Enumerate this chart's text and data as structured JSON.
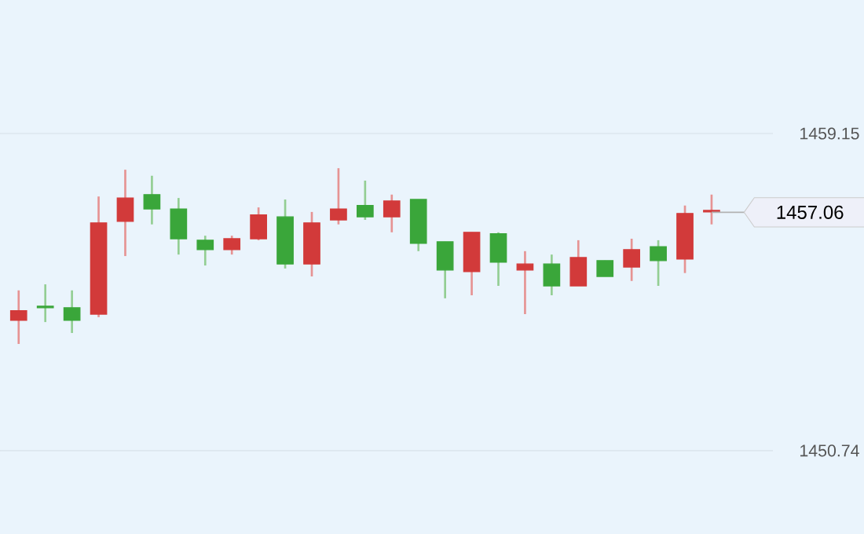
{
  "chart_data": {
    "type": "candlestick",
    "categories": [
      null,
      null,
      null,
      null,
      null,
      null,
      null,
      null,
      null,
      null,
      null,
      null,
      null,
      null,
      null,
      null,
      null,
      null,
      null,
      null,
      null,
      null,
      null,
      null,
      null,
      null,
      null
    ],
    "ohlc": [
      [
        1454.2,
        1454.99,
        1453.57,
        1454.45
      ],
      [
        1454.57,
        1455.15,
        1454.15,
        1454.53
      ],
      [
        1454.53,
        1454.99,
        1453.86,
        1454.2
      ],
      [
        1454.36,
        1457.48,
        1454.28,
        1456.78
      ],
      [
        1456.82,
        1458.19,
        1455.9,
        1457.44
      ],
      [
        1457.53,
        1458.03,
        1456.74,
        1457.15
      ],
      [
        1457.15,
        1457.44,
        1455.94,
        1456.36
      ],
      [
        1456.32,
        1456.44,
        1455.65,
        1456.07
      ],
      [
        1456.07,
        1456.44,
        1455.94,
        1456.36
      ],
      [
        1456.36,
        1457.19,
        1456.32,
        1456.99
      ],
      [
        1456.94,
        1457.4,
        1455.57,
        1455.69
      ],
      [
        1455.69,
        1457.07,
        1455.36,
        1456.78
      ],
      [
        1456.86,
        1458.23,
        1456.74,
        1457.15
      ],
      [
        1457.24,
        1457.9,
        1456.86,
        1456.94
      ],
      [
        1456.94,
        1457.53,
        1456.53,
        1457.36
      ],
      [
        1457.4,
        1457.4,
        1456.03,
        1456.24
      ],
      [
        1456.28,
        1456.28,
        1454.78,
        1455.53
      ],
      [
        1455.49,
        1456.53,
        1454.86,
        1456.53
      ],
      [
        1456.49,
        1456.53,
        1455.11,
        1455.74
      ],
      [
        1455.53,
        1456.03,
        1454.36,
        1455.69
      ],
      [
        1455.69,
        1455.94,
        1454.86,
        1455.11
      ],
      [
        1455.11,
        1456.32,
        1455.11,
        1455.86
      ],
      [
        1455.78,
        1455.78,
        1455.36,
        1455.36
      ],
      [
        1455.61,
        1456.36,
        1455.24,
        1456.07
      ],
      [
        1456.15,
        1456.32,
        1455.11,
        1455.78
      ],
      [
        1455.82,
        1457.24,
        1455.45,
        1457.03
      ],
      [
        1457.07,
        1457.53,
        1456.74,
        1457.11
      ]
    ],
    "ylim": [
      1448.53,
      1462.69
    ],
    "yticks": [
      1459.15,
      1450.74
    ],
    "grid": "y",
    "ref_lines": [
      {
        "axis": "y",
        "value": 1457.06,
        "label": "1457.06"
      }
    ]
  }
}
